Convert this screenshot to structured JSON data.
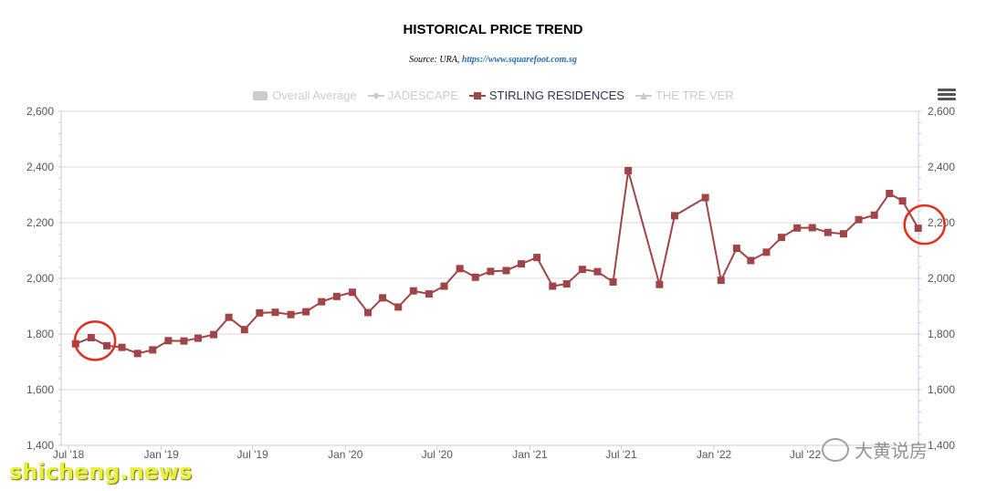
{
  "title": "HISTORICAL PRICE TREND",
  "subtitle": {
    "prefix": "Source: URA, ",
    "link": "https://www.squarefoot.com.sg"
  },
  "legend": [
    {
      "label": "Overall Average",
      "state": "hidden",
      "symbol": "rect"
    },
    {
      "label": "JADESCAPE",
      "state": "hidden",
      "symbol": "diamond"
    },
    {
      "label": "STIRLING RESIDENCES",
      "state": "active",
      "symbol": "square"
    },
    {
      "label": "THE TRE VER",
      "state": "hidden",
      "symbol": "triangle"
    }
  ],
  "watermark": "shicheng.news",
  "watermark2": "大黄说房",
  "chart_data": {
    "type": "line",
    "ylim": [
      1400,
      2600
    ],
    "yticks": [
      1400,
      1600,
      1800,
      2000,
      2200,
      2400,
      2600
    ],
    "ytick_labels": [
      "1,400",
      "1,600",
      "1,800",
      "2,000",
      "2,200",
      "2,400",
      "2,600"
    ],
    "xticks": [
      {
        "label": "Jul '18",
        "x": "2018-07-01"
      },
      {
        "label": "Jan '19",
        "x": "2019-01-01"
      },
      {
        "label": "Jul '19",
        "x": "2019-07-01"
      },
      {
        "label": "Jan '20",
        "x": "2020-01-01"
      },
      {
        "label": "Jul '20",
        "x": "2020-07-01"
      },
      {
        "label": "Jan '21",
        "x": "2021-01-01"
      },
      {
        "label": "Jul '21",
        "x": "2021-07-01"
      },
      {
        "label": "Jan '22",
        "x": "2022-01-01"
      },
      {
        "label": "Jul '22",
        "x": "2022-07-01"
      }
    ],
    "xlim": [
      "2018-07-01",
      "2023-01-01"
    ],
    "grid": true,
    "legend_position": "top-center",
    "series": [
      {
        "name": "STIRLING RESIDENCES",
        "color": "#a04448",
        "points": [
          [
            "2018-07-15",
            1765
          ],
          [
            "2018-08-15",
            1787
          ],
          [
            "2018-09-15",
            1758
          ],
          [
            "2018-10-15",
            1752
          ],
          [
            "2018-11-15",
            1730
          ],
          [
            "2018-12-15",
            1743
          ],
          [
            "2019-01-15",
            1776
          ],
          [
            "2019-02-15",
            1775
          ],
          [
            "2019-03-15",
            1785
          ],
          [
            "2019-04-15",
            1798
          ],
          [
            "2019-05-15",
            1860
          ],
          [
            "2019-06-15",
            1816
          ],
          [
            "2019-07-15",
            1876
          ],
          [
            "2019-08-15",
            1878
          ],
          [
            "2019-09-15",
            1870
          ],
          [
            "2019-10-15",
            1880
          ],
          [
            "2019-11-15",
            1916
          ],
          [
            "2019-12-15",
            1935
          ],
          [
            "2020-01-15",
            1950
          ],
          [
            "2020-02-15",
            1877
          ],
          [
            "2020-03-15",
            1930
          ],
          [
            "2020-04-15",
            1897
          ],
          [
            "2020-05-15",
            1955
          ],
          [
            "2020-06-15",
            1944
          ],
          [
            "2020-07-15",
            1972
          ],
          [
            "2020-08-15",
            2035
          ],
          [
            "2020-09-15",
            2004
          ],
          [
            "2020-10-15",
            2025
          ],
          [
            "2020-11-15",
            2028
          ],
          [
            "2020-12-15",
            2052
          ],
          [
            "2021-01-15",
            2075
          ],
          [
            "2021-02-15",
            1972
          ],
          [
            "2021-03-15",
            1980
          ],
          [
            "2021-04-15",
            2032
          ],
          [
            "2021-05-15",
            2024
          ],
          [
            "2021-06-15",
            1987
          ],
          [
            "2021-07-15",
            2387
          ],
          [
            "2021-09-15",
            1978
          ],
          [
            "2021-10-15",
            2225
          ],
          [
            "2021-12-15",
            2290
          ],
          [
            "2022-01-15",
            1993
          ],
          [
            "2022-02-15",
            2108
          ],
          [
            "2022-03-15",
            2064
          ],
          [
            "2022-04-15",
            2094
          ],
          [
            "2022-05-15",
            2147
          ],
          [
            "2022-06-15",
            2181
          ],
          [
            "2022-07-15",
            2182
          ],
          [
            "2022-08-15",
            2165
          ],
          [
            "2022-09-15",
            2160
          ],
          [
            "2022-10-15",
            2211
          ],
          [
            "2022-11-15",
            2227
          ],
          [
            "2022-12-15",
            2305
          ],
          [
            "2023-01-10",
            2278
          ],
          [
            "2023-02-10",
            2180
          ]
        ]
      }
    ],
    "annotations": [
      {
        "type": "circle",
        "x": "2018-08-01",
        "y": 1776,
        "color": "#e0301e"
      },
      {
        "type": "circle",
        "x": "2023-02-01",
        "y": 2193,
        "color": "#e0301e"
      }
    ]
  }
}
